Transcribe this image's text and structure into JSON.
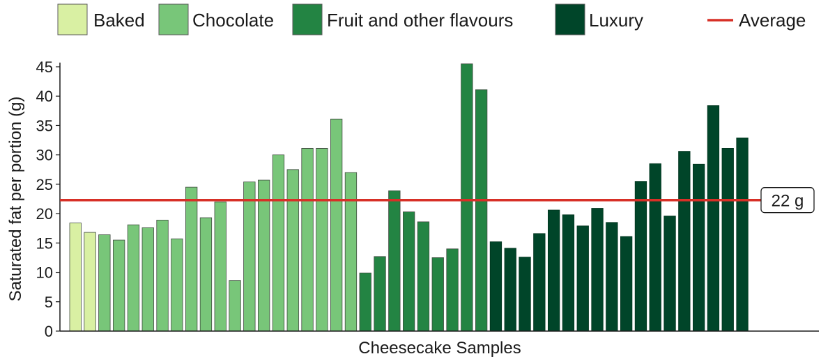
{
  "chart_data": {
    "type": "bar",
    "xlabel": "Cheesecake Samples",
    "ylabel": "Saturated fat per portion (g)",
    "ylim": [
      0,
      45
    ],
    "yticks": [
      0,
      5,
      10,
      15,
      20,
      25,
      30,
      35,
      40,
      45
    ],
    "grid": false,
    "legend_position": "top",
    "series": [
      {
        "name": "Baked",
        "color": "#d9f0a3",
        "values": [
          18.4,
          16.8
        ]
      },
      {
        "name": "Chocolate",
        "color": "#78c679",
        "values": [
          16.4,
          15.5,
          18.1,
          17.6,
          18.9,
          15.7,
          24.5,
          19.3,
          22.0,
          8.6,
          25.4,
          25.7,
          30.0,
          27.5,
          31.1,
          31.1,
          36.1,
          27.0
        ]
      },
      {
        "name": "Fruit and other flavours",
        "color": "#238443",
        "values": [
          9.9,
          12.7,
          23.9,
          20.3,
          18.6,
          12.5,
          14.0,
          45.5,
          41.1
        ]
      },
      {
        "name": "Luxury",
        "color": "#004529",
        "values": [
          15.2,
          14.1,
          12.6,
          16.6,
          20.6,
          19.8,
          17.9,
          20.9,
          18.5,
          16.1,
          25.5,
          28.5,
          19.6,
          30.6,
          28.4,
          38.4,
          31.1,
          32.9
        ]
      }
    ],
    "reference_line": {
      "name": "Average",
      "value": 22.3,
      "label": "22 g",
      "color": "#d73027"
    }
  }
}
